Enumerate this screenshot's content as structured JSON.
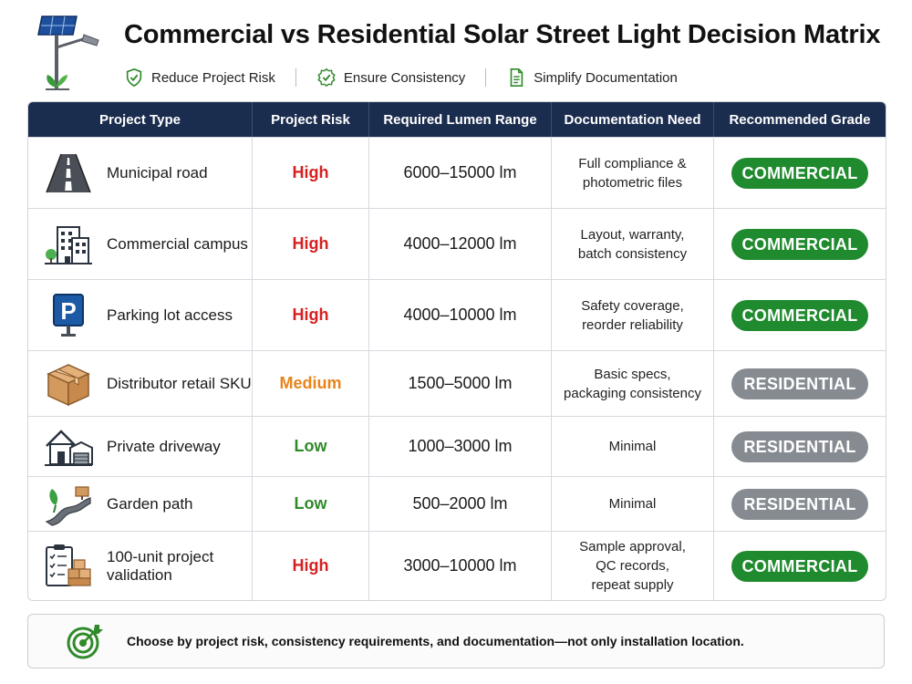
{
  "header": {
    "title": "Commercial vs Residential Solar Street Light Decision Matrix",
    "features": [
      {
        "label": "Reduce Project Risk",
        "icon": "shield-check-icon"
      },
      {
        "label": "Ensure Consistency",
        "icon": "badge-check-icon"
      },
      {
        "label": "Simplify Documentation",
        "icon": "document-icon"
      }
    ]
  },
  "table": {
    "columns": [
      "Project Type",
      "Project Risk",
      "Required Lumen Range",
      "Documentation Need",
      "Recommended Grade"
    ],
    "rows": [
      {
        "type": "Municipal road",
        "icon": "road-icon",
        "risk": "High",
        "risk_level": "high",
        "lumen": "6000–15000 lm",
        "docs": "Full compliance &\nphotometric files",
        "grade": "COMMERCIAL",
        "grade_class": "commercial"
      },
      {
        "type": "Commercial campus",
        "icon": "building-icon",
        "risk": "High",
        "risk_level": "high",
        "lumen": "4000–12000 lm",
        "docs": "Layout, warranty,\nbatch consistency",
        "grade": "COMMERCIAL",
        "grade_class": "commercial"
      },
      {
        "type": "Parking lot access",
        "icon": "parking-sign-icon",
        "risk": "High",
        "risk_level": "high",
        "lumen": "4000–10000 lm",
        "docs": "Safety coverage,\nreorder reliability",
        "grade": "COMMERCIAL",
        "grade_class": "commercial"
      },
      {
        "type": "Distributor retail SKU",
        "icon": "box-icon",
        "risk": "Medium",
        "risk_level": "medium",
        "lumen": "1500–5000 lm",
        "docs": "Basic specs,\npackaging consistency",
        "grade": "RESIDENTIAL",
        "grade_class": "residential"
      },
      {
        "type": "Private driveway",
        "icon": "house-garage-icon",
        "risk": "Low",
        "risk_level": "low",
        "lumen": "1000–3000 lm",
        "docs": "Minimal",
        "grade": "RESIDENTIAL",
        "grade_class": "residential"
      },
      {
        "type": "Garden path",
        "icon": "garden-path-icon",
        "risk": "Low",
        "risk_level": "low",
        "lumen": "500–2000 lm",
        "docs": "Minimal",
        "grade": "RESIDENTIAL",
        "grade_class": "residential"
      },
      {
        "type": "100-unit project\nvalidation",
        "icon": "clipboard-boxes-icon",
        "risk": "High",
        "risk_level": "high",
        "lumen": "3000–10000 lm",
        "docs": "Sample approval,\nQC records,\nrepeat supply",
        "grade": "COMMERCIAL",
        "grade_class": "commercial"
      }
    ]
  },
  "footer": {
    "note": "Choose by project risk, consistency requirements, and documentation—not only installation location.",
    "icon": "target-icon"
  },
  "colors": {
    "header_bg": "#1b2d4f",
    "high": "#d62020",
    "medium": "#e8831a",
    "low": "#2f8a2a",
    "commercial": "#1f8a2e",
    "residential": "#868b92"
  }
}
